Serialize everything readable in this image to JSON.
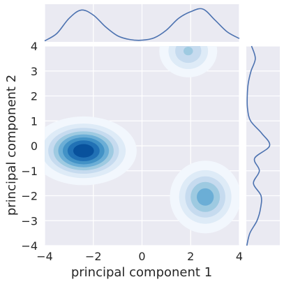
{
  "chart_data": {
    "type": "jointplot-kde",
    "title": "",
    "xlabel": "principal component 1",
    "ylabel": "principal component 2",
    "xlim": [
      -4,
      4
    ],
    "ylim": [
      -4,
      4
    ],
    "xticks": [
      -4,
      -2,
      0,
      2,
      4
    ],
    "yticks": [
      -4,
      -3,
      -2,
      -1,
      0,
      1,
      2,
      3,
      4
    ],
    "xtick_labels": [
      "−4",
      "−2",
      "0",
      "2",
      "4"
    ],
    "ytick_labels": [
      "−4",
      "−3",
      "−2",
      "−1",
      "0",
      "1",
      "2",
      "3",
      "4"
    ],
    "grid": true,
    "colormap": [
      "#f2f7fd",
      "#deebf7",
      "#c6dbef",
      "#9ecae1",
      "#6baed6",
      "#4292c6",
      "#2171b5",
      "#08519c"
    ],
    "clusters": [
      {
        "cx": -2.4,
        "cy": -0.2,
        "sx": 0.95,
        "sy": 0.6,
        "weight": 1.0
      },
      {
        "cx": 2.6,
        "cy": -2.05,
        "sx": 0.7,
        "sy": 0.7,
        "weight": 0.62
      },
      {
        "cx": 1.9,
        "cy": 3.8,
        "sx": 0.62,
        "sy": 0.55,
        "weight": 0.45
      }
    ],
    "marginal_x": {
      "x": [
        -4,
        -3.5,
        -3,
        -2.5,
        -2,
        -1.5,
        -1,
        -0.5,
        0,
        0.5,
        1,
        1.5,
        2,
        2.5,
        3,
        3.5,
        4
      ],
      "density": [
        0.03,
        0.25,
        0.7,
        0.95,
        0.8,
        0.45,
        0.18,
        0.07,
        0.05,
        0.12,
        0.35,
        0.7,
        0.9,
        0.98,
        0.65,
        0.3,
        0.1
      ]
    },
    "marginal_y": {
      "y": [
        -4,
        -3.5,
        -3,
        -2.5,
        -2,
        -1.5,
        -1,
        -0.5,
        0,
        0.5,
        1,
        1.5,
        2,
        2.5,
        3,
        3.5,
        4
      ],
      "density": [
        0.02,
        0.15,
        0.45,
        0.6,
        0.62,
        0.3,
        0.55,
        0.35,
        0.98,
        0.65,
        0.18,
        0.05,
        0.04,
        0.08,
        0.2,
        0.38,
        0.22
      ]
    },
    "colors": {
      "panel_bg": "#eaeaf2",
      "grid": "#ffffff",
      "line": "#4c72b0"
    }
  }
}
